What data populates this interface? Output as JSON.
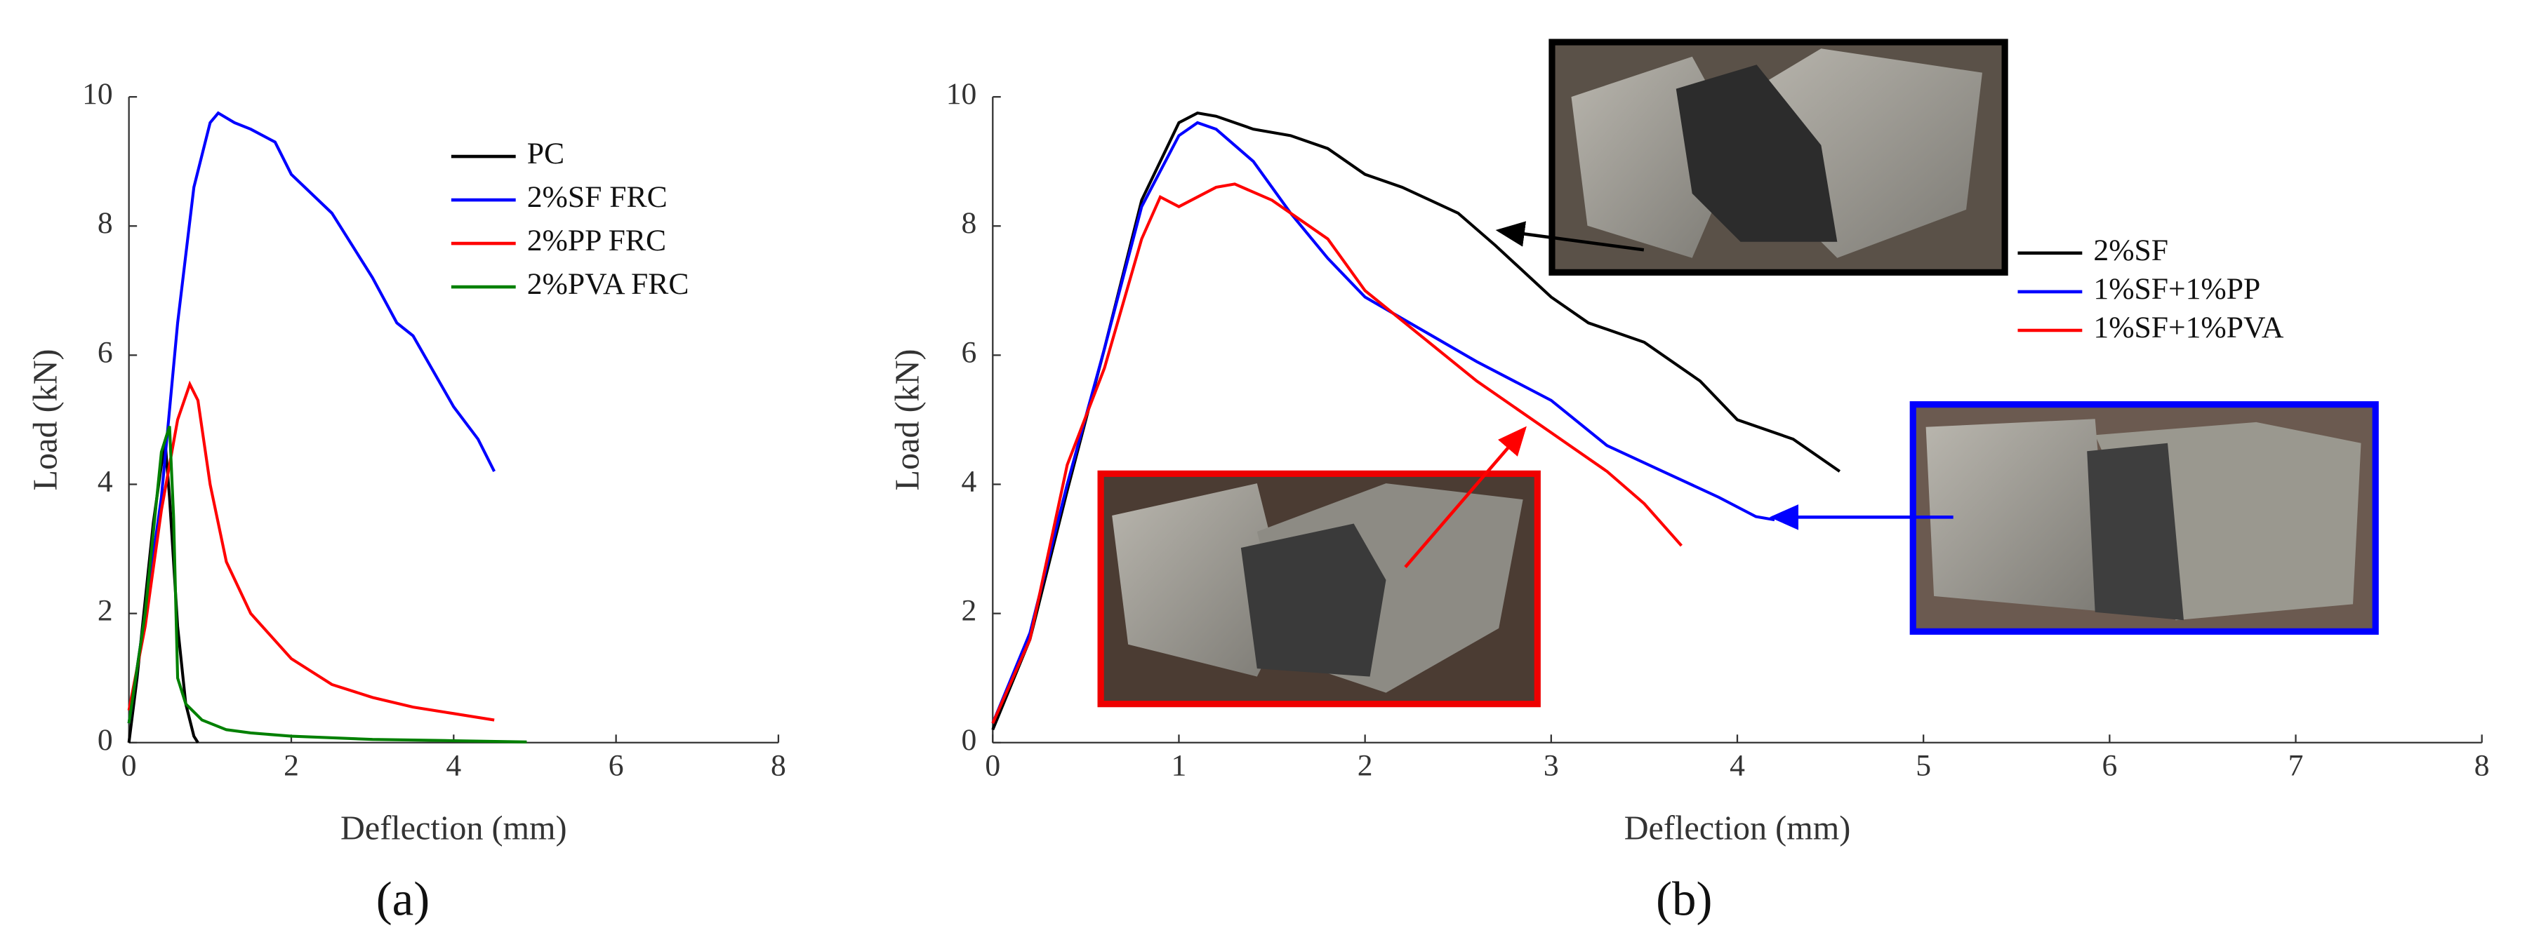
{
  "chart_data": [
    {
      "type": "line",
      "caption": "(a)",
      "xlabel": "Deflection (mm)",
      "ylabel": "Load (kN)",
      "xlim": [
        0,
        8
      ],
      "ylim": [
        0,
        10
      ],
      "xticks": [
        0,
        2,
        4,
        6,
        8
      ],
      "yticks": [
        0,
        2,
        4,
        6,
        8,
        10
      ],
      "legend_position": "upper-right",
      "series": [
        {
          "name": "PC",
          "color": "#000000",
          "x": [
            0,
            0.1,
            0.2,
            0.3,
            0.4,
            0.45,
            0.5,
            0.6,
            0.7,
            0.8,
            0.85
          ],
          "values": [
            0,
            1.0,
            2.2,
            3.4,
            4.3,
            4.6,
            3.8,
            1.8,
            0.6,
            0.1,
            0
          ]
        },
        {
          "name": "2%SF FRC",
          "color": "#0000ff",
          "x": [
            0,
            0.2,
            0.4,
            0.6,
            0.8,
            1.0,
            1.1,
            1.3,
            1.5,
            1.8,
            2.0,
            2.5,
            3.0,
            3.3,
            3.5,
            4.0,
            4.3,
            4.5
          ],
          "values": [
            0.3,
            2.0,
            3.8,
            6.5,
            8.6,
            9.6,
            9.75,
            9.6,
            9.5,
            9.3,
            8.8,
            8.2,
            7.2,
            6.5,
            6.3,
            5.2,
            4.7,
            4.2
          ]
        },
        {
          "name": "2%PP FRC",
          "color": "#ff0000",
          "x": [
            0,
            0.2,
            0.4,
            0.6,
            0.75,
            0.85,
            1.0,
            1.2,
            1.5,
            2.0,
            2.5,
            3.0,
            3.5,
            4.0,
            4.5
          ],
          "values": [
            0.5,
            1.8,
            3.6,
            5.0,
            5.55,
            5.3,
            4.0,
            2.8,
            2.0,
            1.3,
            0.9,
            0.7,
            0.55,
            0.45,
            0.35
          ]
        },
        {
          "name": "2%PVA FRC",
          "color": "#008000",
          "x": [
            0,
            0.2,
            0.4,
            0.5,
            0.55,
            0.6,
            0.7,
            0.9,
            1.2,
            1.5,
            2,
            3,
            4,
            4.9
          ],
          "values": [
            0.3,
            2.0,
            4.5,
            4.9,
            3.5,
            1.0,
            0.6,
            0.35,
            0.2,
            0.15,
            0.1,
            0.05,
            0.03,
            0.01
          ]
        }
      ]
    },
    {
      "type": "line",
      "caption": "(b)",
      "xlabel": "Deflection (mm)",
      "ylabel": "Load (kN)",
      "xlim": [
        0,
        8
      ],
      "ylim": [
        0,
        10
      ],
      "xticks": [
        0,
        1,
        2,
        3,
        4,
        5,
        6,
        7,
        8
      ],
      "yticks": [
        0,
        2,
        4,
        6,
        8,
        10
      ],
      "legend_position": "right",
      "series": [
        {
          "name": "2%SF",
          "color": "#000000",
          "x": [
            0,
            0.2,
            0.4,
            0.6,
            0.8,
            1.0,
            1.1,
            1.2,
            1.4,
            1.6,
            1.8,
            2.0,
            2.2,
            2.5,
            2.7,
            3.0,
            3.2,
            3.5,
            3.8,
            4.0,
            4.3,
            4.55
          ],
          "values": [
            0.2,
            1.6,
            3.9,
            6.1,
            8.4,
            9.6,
            9.75,
            9.7,
            9.5,
            9.4,
            9.2,
            8.8,
            8.6,
            8.2,
            7.7,
            6.9,
            6.5,
            6.2,
            5.6,
            5.0,
            4.7,
            4.2
          ]
        },
        {
          "name": "1%SF+1%PP",
          "color": "#0000ff",
          "x": [
            0,
            0.2,
            0.4,
            0.6,
            0.8,
            1.0,
            1.1,
            1.2,
            1.4,
            1.6,
            1.8,
            2.0,
            2.3,
            2.6,
            3.0,
            3.3,
            3.6,
            3.9,
            4.1,
            4.2
          ],
          "values": [
            0.3,
            1.7,
            4.0,
            6.1,
            8.3,
            9.4,
            9.6,
            9.5,
            9.0,
            8.2,
            7.5,
            6.9,
            6.4,
            5.9,
            5.3,
            4.6,
            4.2,
            3.8,
            3.5,
            3.45
          ]
        },
        {
          "name": "1%SF+1%PVA",
          "color": "#ff0000",
          "x": [
            0,
            0.2,
            0.4,
            0.6,
            0.8,
            0.9,
            1.0,
            1.2,
            1.3,
            1.5,
            1.8,
            2.0,
            2.3,
            2.6,
            3.0,
            3.3,
            3.5,
            3.7
          ],
          "values": [
            0.3,
            1.6,
            4.3,
            5.8,
            7.8,
            8.45,
            8.3,
            8.6,
            8.65,
            8.4,
            7.8,
            7.0,
            6.3,
            5.6,
            4.8,
            4.2,
            3.7,
            3.05
          ]
        }
      ]
    }
  ]
}
